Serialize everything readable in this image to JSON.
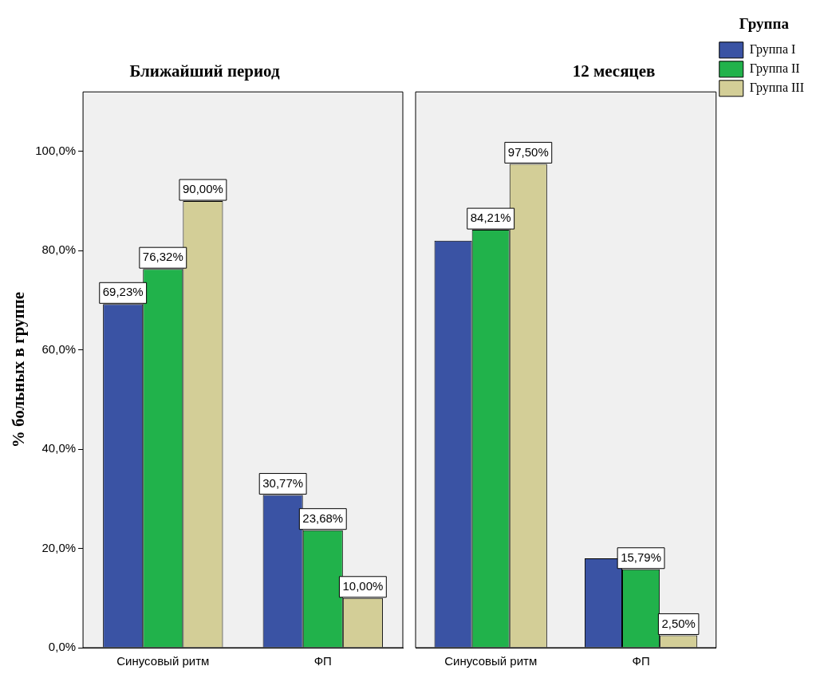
{
  "chart_data": [
    {
      "type": "bar",
      "title": "Ближайший период",
      "ylabel": "% больных в группе",
      "categories": [
        "Синусовый ритм",
        "ФП"
      ],
      "series": [
        {
          "color": "#3a53a4",
          "values": [
            69.23,
            30.77
          ],
          "value_labels": [
            "69,23%",
            "30,77%"
          ]
        },
        {
          "color": "#21b24b",
          "values": [
            76.32,
            23.68
          ],
          "value_labels": [
            "76,32%",
            "23,68%"
          ]
        },
        {
          "color": "#d3ce97",
          "values": [
            90.0,
            10.0
          ],
          "value_labels": [
            "90,00%",
            "10,00%"
          ]
        }
      ],
      "ylim": [
        0,
        112
      ],
      "yticks": [
        {
          "value": 0,
          "label": "0,0%"
        },
        {
          "value": 20,
          "label": "20,0%"
        },
        {
          "value": 40,
          "label": "40,0%"
        },
        {
          "value": 60,
          "label": "60,0%"
        },
        {
          "value": 80,
          "label": "80,0%"
        },
        {
          "value": 100,
          "label": "100,0%"
        }
      ],
      "grid": false,
      "legend": false
    },
    {
      "type": "bar",
      "title": "12 месяцев",
      "legend_title": "Группа",
      "categories": [
        "Синусовый ритм",
        "ФП"
      ],
      "series": [
        {
          "name": "Группа I",
          "color": "#3a53a4",
          "values": [
            82,
            18
          ],
          "value_labels": [
            null,
            null
          ]
        },
        {
          "name": "Группа II",
          "color": "#21b24b",
          "values": [
            84.21,
            15.79
          ],
          "value_labels": [
            "84,21%",
            "15,79%"
          ]
        },
        {
          "name": "Группа III",
          "color": "#d3ce97",
          "values": [
            97.5,
            2.5
          ],
          "value_labels": [
            "97,50%",
            "2,50%"
          ]
        }
      ],
      "ylim": [
        0,
        112
      ],
      "yticks": [
        {
          "value": 0,
          "label": null
        },
        {
          "value": 20,
          "label": null
        },
        {
          "value": 40,
          "label": null
        },
        {
          "value": 60,
          "label": null
        },
        {
          "value": 80,
          "label": null
        },
        {
          "value": 100,
          "label": null
        }
      ],
      "tick_labels": "x",
      "grid": false,
      "legend": "top right"
    }
  ]
}
